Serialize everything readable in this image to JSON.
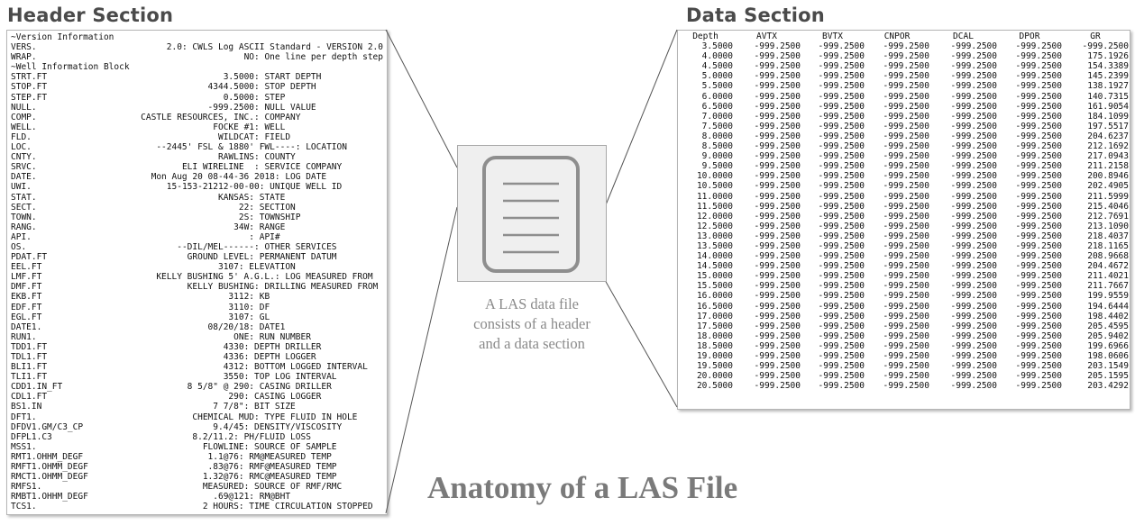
{
  "header_section": {
    "title": "Header Section",
    "lines": [
      {
        "k": "~Version Information",
        "v": ""
      },
      {
        "k": "VERS.",
        "v": "2.0: CWLS Log ASCII Standard - VERSION 2.0"
      },
      {
        "k": "WRAP.",
        "v": "NO: One line per depth step"
      },
      {
        "k": "~Well Information Block",
        "v": ""
      },
      {
        "k": "STRT.FT",
        "v": "3.5000: START DEPTH            "
      },
      {
        "k": "STOP.FT",
        "v": "4344.5000: STOP DEPTH             "
      },
      {
        "k": "STEP.FT",
        "v": "0.5000: STEP                   "
      },
      {
        "k": "NULL.",
        "v": "-999.2500: NULL VALUE             "
      },
      {
        "k": "COMP.",
        "v": "CASTLE RESOURCES, INC.: COMPANY                "
      },
      {
        "k": "WELL.",
        "v": "FOCKE #1: WELL                   "
      },
      {
        "k": "FLD.",
        "v": "WILDCAT: FIELD                  "
      },
      {
        "k": "LOC.",
        "v": "--2445' FSL & 1880' FWL----: LOCATION       "
      },
      {
        "k": "CNTY.",
        "v": "RAWLINS: COUNTY                 "
      },
      {
        "k": "SRVC.",
        "v": "ELI WIRELINE  : SERVICE COMPANY        "
      },
      {
        "k": "DATE.",
        "v": "Mon Aug 20 08-44-36 2018: LOG DATE           "
      },
      {
        "k": "UWI.",
        "v": "15-153-21212-00-00: UNIQUE WELL ID        "
      },
      {
        "k": "STAT.",
        "v": "KANSAS: STATE                   "
      },
      {
        "k": "SECT.",
        "v": "22: SECTION                 "
      },
      {
        "k": "TOWN.",
        "v": "2S: TOWNSHIP                "
      },
      {
        "k": "RANG.",
        "v": "34W: RANGE                   "
      },
      {
        "k": "API.",
        "v": ": API#                    "
      },
      {
        "k": "OS.",
        "v": "--DIL/MEL------: OTHER SERVICES         "
      },
      {
        "k": "PDAT.FT",
        "v": "GROUND LEVEL: PERMANENT DATUM         "
      },
      {
        "k": "EEL.FT",
        "v": "3107: ELEVATION                 "
      },
      {
        "k": "LMF.FT",
        "v": "KELLY BUSHING 5' A.G.L.: LOG MEASURED FROM  "
      },
      {
        "k": "DMF.FT",
        "v": "KELLY BUSHING: DRILLING MEASURED FROM "
      },
      {
        "k": "EKB.FT",
        "v": "3112: KB                      "
      },
      {
        "k": "EDF.FT",
        "v": "3110: DF                      "
      },
      {
        "k": "EGL.FT",
        "v": "3107: GL                      "
      },
      {
        "k": "DATE1.",
        "v": "08/20/18: DATE1                   "
      },
      {
        "k": "RUN1.",
        "v": "ONE: RUN NUMBER              "
      },
      {
        "k": "TDD1.FT",
        "v": "4330: DEPTH DRILLER            "
      },
      {
        "k": "TDL1.FT",
        "v": "4336: DEPTH LOGGER             "
      },
      {
        "k": "BLI1.FT",
        "v": "4312: BOTTOM LOGGED INTERVAL   "
      },
      {
        "k": "TLI1.FT",
        "v": "3550: TOP LOG INTERVAL         "
      },
      {
        "k": "CDD1.IN_FT",
        "v": "8 5/8\" @ 290: CASING DRILLER          "
      },
      {
        "k": "CDL1.FT",
        "v": "290: CASING LOGGER            "
      },
      {
        "k": "BS1.IN",
        "v": "7 7/8\": BIT SIZE                 "
      },
      {
        "k": "DFT1.",
        "v": "CHEMICAL MUD: TYPE FLUID IN HOLE     "
      },
      {
        "k": "DFDV1.GM/C3_CP",
        "v": "9.4/45: DENSITY/VISCOSITY        "
      },
      {
        "k": "DFPL1.C3",
        "v": "8.2/11.2: PH/FLUID LOSS              "
      },
      {
        "k": "MSS1.",
        "v": "FLOWLINE: SOURCE OF SAMPLE         "
      },
      {
        "k": "RMT1.OHHM_DEGF",
        "v": "1.1@76: RM@MEASURED TEMP          "
      },
      {
        "k": "RMFT1.OHMM_DEGF",
        "v": ".83@76: RMF@MEASURED TEMP         "
      },
      {
        "k": "RMCT1.OHMM_DEGF",
        "v": "1.32@76: RMC@MEASURED TEMP         "
      },
      {
        "k": "RMFS1.",
        "v": "MEASURED: SOURCE OF RMF/RMC        "
      },
      {
        "k": "RMBT1.OHHM_DEGF",
        "v": ".69@121: RM@BHT                  "
      },
      {
        "k": "TCS1.",
        "v": "2 HOURS: TIME CIRCULATION STOPPED  "
      }
    ]
  },
  "data_section": {
    "title": "Data Section",
    "columns": [
      "Depth",
      "AVTX",
      "BVTX",
      "CNPOR",
      "DCAL",
      "DPOR",
      "GR"
    ],
    "rows": [
      [
        "3.5000",
        "-999.2500",
        "-999.2500",
        "-999.2500",
        "-999.2500",
        "-999.2500",
        "-999.2500"
      ],
      [
        "4.0000",
        "-999.2500",
        "-999.2500",
        "-999.2500",
        "-999.2500",
        "-999.2500",
        "175.1926"
      ],
      [
        "4.5000",
        "-999.2500",
        "-999.2500",
        "-999.2500",
        "-999.2500",
        "-999.2500",
        "154.3389"
      ],
      [
        "5.0000",
        "-999.2500",
        "-999.2500",
        "-999.2500",
        "-999.2500",
        "-999.2500",
        "145.2399"
      ],
      [
        "5.5000",
        "-999.2500",
        "-999.2500",
        "-999.2500",
        "-999.2500",
        "-999.2500",
        "138.1927"
      ],
      [
        "6.0000",
        "-999.2500",
        "-999.2500",
        "-999.2500",
        "-999.2500",
        "-999.2500",
        "140.7315"
      ],
      [
        "6.5000",
        "-999.2500",
        "-999.2500",
        "-999.2500",
        "-999.2500",
        "-999.2500",
        "161.9054"
      ],
      [
        "7.0000",
        "-999.2500",
        "-999.2500",
        "-999.2500",
        "-999.2500",
        "-999.2500",
        "184.1099"
      ],
      [
        "7.5000",
        "-999.2500",
        "-999.2500",
        "-999.2500",
        "-999.2500",
        "-999.2500",
        "197.5517"
      ],
      [
        "8.0000",
        "-999.2500",
        "-999.2500",
        "-999.2500",
        "-999.2500",
        "-999.2500",
        "204.6237"
      ],
      [
        "8.5000",
        "-999.2500",
        "-999.2500",
        "-999.2500",
        "-999.2500",
        "-999.2500",
        "212.1692"
      ],
      [
        "9.0000",
        "-999.2500",
        "-999.2500",
        "-999.2500",
        "-999.2500",
        "-999.2500",
        "217.0943"
      ],
      [
        "9.5000",
        "-999.2500",
        "-999.2500",
        "-999.2500",
        "-999.2500",
        "-999.2500",
        "211.2158"
      ],
      [
        "10.0000",
        "-999.2500",
        "-999.2500",
        "-999.2500",
        "-999.2500",
        "-999.2500",
        "200.8946"
      ],
      [
        "10.5000",
        "-999.2500",
        "-999.2500",
        "-999.2500",
        "-999.2500",
        "-999.2500",
        "202.4905"
      ],
      [
        "11.0000",
        "-999.2500",
        "-999.2500",
        "-999.2500",
        "-999.2500",
        "-999.2500",
        "211.5999"
      ],
      [
        "11.5000",
        "-999.2500",
        "-999.2500",
        "-999.2500",
        "-999.2500",
        "-999.2500",
        "215.4046"
      ],
      [
        "12.0000",
        "-999.2500",
        "-999.2500",
        "-999.2500",
        "-999.2500",
        "-999.2500",
        "212.7691"
      ],
      [
        "12.5000",
        "-999.2500",
        "-999.2500",
        "-999.2500",
        "-999.2500",
        "-999.2500",
        "213.1090"
      ],
      [
        "13.0000",
        "-999.2500",
        "-999.2500",
        "-999.2500",
        "-999.2500",
        "-999.2500",
        "218.4037"
      ],
      [
        "13.5000",
        "-999.2500",
        "-999.2500",
        "-999.2500",
        "-999.2500",
        "-999.2500",
        "218.1165"
      ],
      [
        "14.0000",
        "-999.2500",
        "-999.2500",
        "-999.2500",
        "-999.2500",
        "-999.2500",
        "208.9668"
      ],
      [
        "14.5000",
        "-999.2500",
        "-999.2500",
        "-999.2500",
        "-999.2500",
        "-999.2500",
        "204.4672"
      ],
      [
        "15.0000",
        "-999.2500",
        "-999.2500",
        "-999.2500",
        "-999.2500",
        "-999.2500",
        "211.4021"
      ],
      [
        "15.5000",
        "-999.2500",
        "-999.2500",
        "-999.2500",
        "-999.2500",
        "-999.2500",
        "211.7667"
      ],
      [
        "16.0000",
        "-999.2500",
        "-999.2500",
        "-999.2500",
        "-999.2500",
        "-999.2500",
        "199.9559"
      ],
      [
        "16.5000",
        "-999.2500",
        "-999.2500",
        "-999.2500",
        "-999.2500",
        "-999.2500",
        "194.6444"
      ],
      [
        "17.0000",
        "-999.2500",
        "-999.2500",
        "-999.2500",
        "-999.2500",
        "-999.2500",
        "198.4402"
      ],
      [
        "17.5000",
        "-999.2500",
        "-999.2500",
        "-999.2500",
        "-999.2500",
        "-999.2500",
        "205.4595"
      ],
      [
        "18.0000",
        "-999.2500",
        "-999.2500",
        "-999.2500",
        "-999.2500",
        "-999.2500",
        "205.9402"
      ],
      [
        "18.5000",
        "-999.2500",
        "-999.2500",
        "-999.2500",
        "-999.2500",
        "-999.2500",
        "199.6966"
      ],
      [
        "19.0000",
        "-999.2500",
        "-999.2500",
        "-999.2500",
        "-999.2500",
        "-999.2500",
        "198.0606"
      ],
      [
        "19.5000",
        "-999.2500",
        "-999.2500",
        "-999.2500",
        "-999.2500",
        "-999.2500",
        "203.1549"
      ],
      [
        "20.0000",
        "-999.2500",
        "-999.2500",
        "-999.2500",
        "-999.2500",
        "-999.2500",
        "205.1595"
      ],
      [
        "20.5000",
        "-999.2500",
        "-999.2500",
        "-999.2500",
        "-999.2500",
        "-999.2500",
        "203.4292"
      ]
    ]
  },
  "caption": {
    "lines": [
      "A LAS data file",
      "consists of a header",
      "and a data section"
    ]
  },
  "main_title": "Anatomy of a LAS File",
  "icon": {
    "name": "document-icon"
  },
  "colors": {
    "panel_border": "#b5b5b5",
    "connector": "#555555",
    "icon_stroke": "#8e8e8e",
    "icon_box": "#efefef",
    "caption": "#8a8a8a",
    "title": "#7a7a7a"
  }
}
